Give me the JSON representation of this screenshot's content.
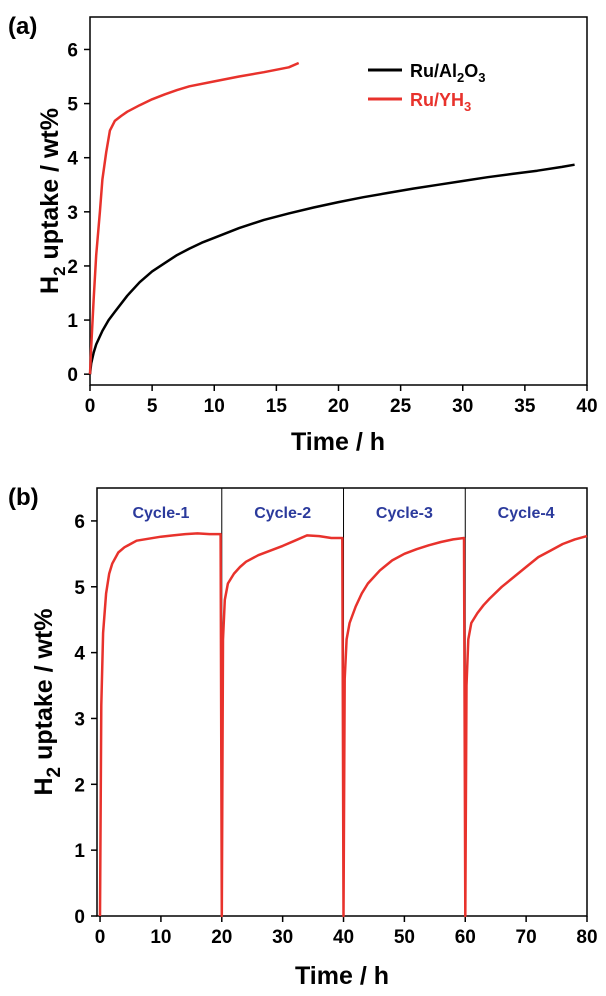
{
  "chart_data": [
    {
      "type": "line",
      "panel_label": "(a)",
      "xlabel": "Time / h",
      "ylabel_main": "H",
      "ylabel_sub": "2",
      "ylabel_rest": " uptake / wt%",
      "xlim": [
        0,
        40
      ],
      "ylim": [
        -0.2,
        6.6
      ],
      "xticks": [
        0,
        5,
        10,
        15,
        20,
        25,
        30,
        35,
        40
      ],
      "yticks": [
        0,
        1,
        2,
        3,
        4,
        5,
        6
      ],
      "legend_placement": "top-right",
      "series": [
        {
          "name_parts": [
            "Ru/Al",
            "2",
            "O",
            "3"
          ],
          "color": "#000000",
          "x": [
            0,
            0.1,
            0.3,
            0.5,
            1,
            1.5,
            2,
            3,
            4,
            5,
            6,
            7,
            8,
            9,
            10,
            12,
            14,
            16,
            18,
            20,
            22,
            24,
            26,
            28,
            30,
            32,
            34,
            36,
            38,
            39
          ],
          "y": [
            0,
            0.2,
            0.4,
            0.55,
            0.8,
            1.0,
            1.15,
            1.45,
            1.7,
            1.9,
            2.05,
            2.2,
            2.32,
            2.43,
            2.52,
            2.7,
            2.85,
            2.97,
            3.08,
            3.18,
            3.27,
            3.35,
            3.43,
            3.5,
            3.57,
            3.64,
            3.7,
            3.76,
            3.83,
            3.87
          ]
        },
        {
          "name_parts": [
            "Ru/YH",
            "3"
          ],
          "color": "#e8322c",
          "x": [
            0,
            0.1,
            0.3,
            0.5,
            0.8,
            1.0,
            1.3,
            1.6,
            2,
            2.5,
            3,
            4,
            5,
            6,
            7,
            8,
            10,
            12,
            14,
            16,
            16.8
          ],
          "y": [
            0,
            0.5,
            1.4,
            2.2,
            3.0,
            3.6,
            4.1,
            4.5,
            4.68,
            4.77,
            4.85,
            4.97,
            5.08,
            5.17,
            5.25,
            5.32,
            5.41,
            5.5,
            5.58,
            5.67,
            5.75
          ]
        }
      ]
    },
    {
      "type": "line",
      "panel_label": "(b)",
      "xlabel": "Time / h",
      "ylabel_main": "H",
      "ylabel_sub": "2",
      "ylabel_rest": " uptake / wt%",
      "xlim": [
        -0.5,
        80
      ],
      "ylim": [
        0,
        6.5
      ],
      "xticks": [
        0,
        10,
        20,
        30,
        40,
        50,
        60,
        70,
        80
      ],
      "yticks": [
        0,
        1,
        2,
        3,
        4,
        5,
        6
      ],
      "cycle_boundaries": [
        20,
        40,
        60
      ],
      "cycles": [
        {
          "label": "Cycle-1",
          "center_x": 10
        },
        {
          "label": "Cycle-2",
          "center_x": 30
        },
        {
          "label": "Cycle-3",
          "center_x": 50
        },
        {
          "label": "Cycle-4",
          "center_x": 70
        }
      ],
      "series": [
        {
          "color": "#e8322c",
          "x": [
            0,
            0.2,
            0.5,
            1,
            1.5,
            2,
            3,
            4,
            5,
            6,
            8,
            10,
            12,
            14,
            16,
            18,
            19.8,
            20,
            20.2,
            20.5,
            21,
            22,
            23,
            24,
            26,
            28,
            30,
            32,
            34,
            36,
            38,
            39.8,
            40,
            40.2,
            40.5,
            41,
            42,
            43,
            44,
            46,
            48,
            50,
            52,
            54,
            56,
            58,
            59.8,
            60,
            60.2,
            60.5,
            61,
            62,
            63,
            64,
            66,
            68,
            70,
            72,
            74,
            76,
            78,
            80
          ],
          "y": [
            0,
            3.2,
            4.3,
            4.9,
            5.2,
            5.35,
            5.52,
            5.6,
            5.65,
            5.7,
            5.73,
            5.76,
            5.78,
            5.8,
            5.81,
            5.8,
            5.8,
            0,
            4.2,
            4.8,
            5.05,
            5.2,
            5.3,
            5.38,
            5.48,
            5.55,
            5.62,
            5.7,
            5.78,
            5.77,
            5.74,
            5.74,
            0,
            3.6,
            4.2,
            4.45,
            4.7,
            4.9,
            5.05,
            5.25,
            5.4,
            5.5,
            5.57,
            5.63,
            5.68,
            5.72,
            5.74,
            0,
            3.5,
            4.2,
            4.45,
            4.6,
            4.72,
            4.82,
            5.0,
            5.15,
            5.3,
            5.45,
            5.55,
            5.65,
            5.72,
            5.77
          ]
        }
      ]
    }
  ]
}
